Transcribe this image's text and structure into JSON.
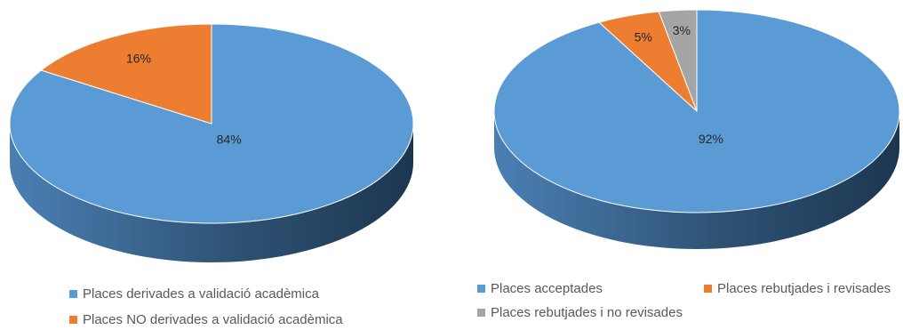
{
  "chart_data": [
    {
      "type": "pie",
      "style": "3d",
      "slices": [
        {
          "label": "Places derivades a validació acadèmica",
          "value": 84,
          "data_label": "84%",
          "color": "#5b9bd5"
        },
        {
          "label": "Places NO derivades a validació acadèmica",
          "value": 16,
          "data_label": "16%",
          "color": "#ed7d31"
        }
      ],
      "legend_position": "bottom"
    },
    {
      "type": "pie",
      "style": "3d",
      "slices": [
        {
          "label": "Places acceptades",
          "value": 92,
          "data_label": "92%",
          "color": "#5b9bd5"
        },
        {
          "label": "Places rebutjades i revisades",
          "value": 5,
          "data_label": "5%",
          "color": "#ed7d31"
        },
        {
          "label": "Places rebutjades i no revisades",
          "value": 3,
          "data_label": "3%",
          "color": "#a5a5a5"
        }
      ],
      "legend_position": "bottom"
    }
  ]
}
